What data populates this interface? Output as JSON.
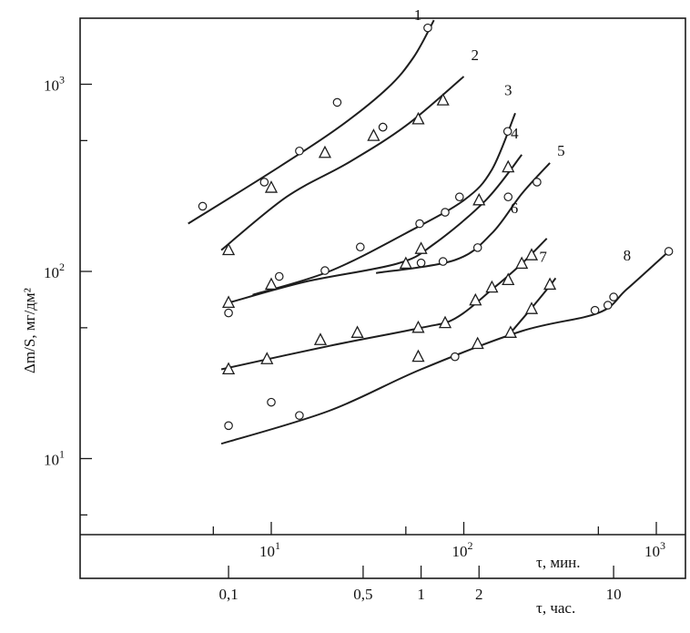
{
  "chart_data": {
    "type": "scatter",
    "scale": "log-log",
    "ylabel": "Δm/S, мг/дм²",
    "xlabel_minutes": "τ, мин.",
    "xlabel_hours": "τ, час.",
    "xlim_minutes": [
      2.7,
      1600
    ],
    "ylim": [
      4,
      2300
    ],
    "y_ticks": [
      {
        "value": 10,
        "base": "10",
        "exp": "1"
      },
      {
        "value": 100,
        "base": "10",
        "exp": "2"
      },
      {
        "value": 1000,
        "base": "10",
        "exp": "3"
      }
    ],
    "x_ticks_minutes": [
      {
        "value": 10,
        "base": "10",
        "exp": "1"
      },
      {
        "value": 100,
        "base": "10",
        "exp": "2"
      },
      {
        "value": 1000,
        "base": "10",
        "exp": "3"
      }
    ],
    "x_ticks_hours": [
      {
        "value": 0.1,
        "label": "0,1"
      },
      {
        "value": 0.5,
        "label": "0,5"
      },
      {
        "value": 1,
        "label": "1"
      },
      {
        "value": 2,
        "label": "2"
      },
      {
        "value": 10,
        "label": "10"
      }
    ],
    "series": [
      {
        "label": "1",
        "marker": "circle",
        "points": [
          [
            4.4,
            223
          ],
          [
            9.2,
            300
          ],
          [
            14,
            440
          ],
          [
            38,
            590
          ],
          [
            38,
            590
          ],
          [
            22,
            800
          ],
          [
            65,
            2000
          ]
        ],
        "curve": [
          [
            3.7,
            180
          ],
          [
            10,
            340
          ],
          [
            22,
            580
          ],
          [
            40,
            950
          ],
          [
            55,
            1400
          ],
          [
            70,
            2200
          ]
        ]
      },
      {
        "label": "2",
        "marker": "triangle",
        "points": [
          [
            6,
            130
          ],
          [
            10,
            280
          ],
          [
            19,
            430
          ],
          [
            34,
            530
          ],
          [
            58,
            650
          ],
          [
            78,
            820
          ]
        ],
        "curve": [
          [
            5.5,
            130
          ],
          [
            12,
            250
          ],
          [
            25,
            380
          ],
          [
            50,
            600
          ],
          [
            100,
            1100
          ]
        ]
      },
      {
        "label": "3",
        "marker": "circle",
        "points": [
          [
            6,
            60
          ],
          [
            11,
            94
          ],
          [
            19,
            101
          ],
          [
            29,
            135
          ],
          [
            59,
            180
          ],
          [
            80,
            207
          ],
          [
            95,
            250
          ],
          [
            169,
            560
          ]
        ],
        "curve": [
          [
            8,
            75
          ],
          [
            20,
            100
          ],
          [
            50,
            160
          ],
          [
            100,
            240
          ],
          [
            140,
            350
          ],
          [
            185,
            700
          ]
        ]
      },
      {
        "label": "4",
        "marker": "triangle",
        "points": [
          [
            6,
            68
          ],
          [
            10,
            85
          ],
          [
            50,
            110
          ],
          [
            60,
            132
          ],
          [
            120,
            240
          ],
          [
            170,
            360
          ]
        ],
        "curve": [
          [
            6,
            68
          ],
          [
            15,
            88
          ],
          [
            45,
            110
          ],
          [
            70,
            140
          ],
          [
            130,
            240
          ],
          [
            200,
            420
          ]
        ]
      },
      {
        "label": "5",
        "marker": "circle",
        "points": [
          [
            60,
            111
          ],
          [
            78,
            113
          ],
          [
            118,
            134
          ],
          [
            170,
            250
          ],
          [
            240,
            300
          ]
        ],
        "curve": [
          [
            35,
            98
          ],
          [
            90,
            115
          ],
          [
            140,
            160
          ],
          [
            200,
            260
          ],
          [
            280,
            380
          ]
        ]
      },
      {
        "label": "6",
        "marker": "triangle",
        "points": [
          [
            6,
            30
          ],
          [
            9.5,
            34
          ],
          [
            18,
            43
          ],
          [
            28,
            47
          ],
          [
            58,
            50
          ],
          [
            80,
            53
          ],
          [
            115,
            70
          ],
          [
            140,
            82
          ],
          [
            170,
            90
          ],
          [
            200,
            110
          ],
          [
            225,
            122
          ]
        ],
        "curve": [
          [
            5.5,
            30
          ],
          [
            20,
            40
          ],
          [
            60,
            50
          ],
          [
            90,
            56
          ],
          [
            140,
            80
          ],
          [
            200,
            110
          ],
          [
            270,
            150
          ]
        ]
      },
      {
        "label": "7",
        "marker": "triangle",
        "points": [
          [
            58,
            35
          ],
          [
            118,
            41
          ],
          [
            175,
            47
          ],
          [
            225,
            63
          ],
          [
            280,
            85
          ]
        ],
        "curve": [
          [
            175,
            47
          ],
          [
            220,
            62
          ],
          [
            270,
            80
          ],
          [
            300,
            92
          ]
        ]
      },
      {
        "label": "8",
        "marker": "circle",
        "points": [
          [
            6,
            15
          ],
          [
            10,
            20
          ],
          [
            14,
            17
          ],
          [
            90,
            35
          ],
          [
            480,
            62
          ],
          [
            560,
            66
          ],
          [
            600,
            73
          ],
          [
            1160,
            128
          ]
        ],
        "curve": [
          [
            5.5,
            12
          ],
          [
            20,
            18
          ],
          [
            60,
            30
          ],
          [
            200,
            48
          ],
          [
            500,
            60
          ],
          [
            700,
            80
          ],
          [
            1160,
            128
          ]
        ]
      }
    ]
  }
}
